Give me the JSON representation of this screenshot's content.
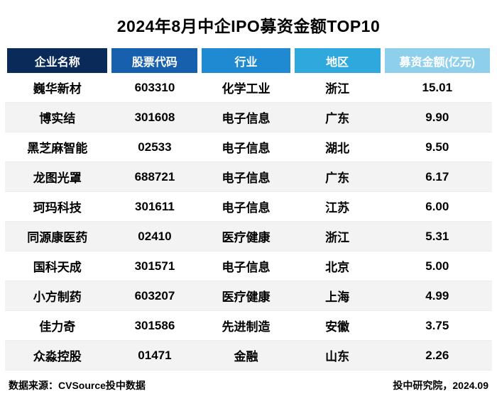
{
  "title": "2024年8月中企IPO募资金额TOP10",
  "chart_data": {
    "type": "table",
    "title": "2024年8月中企IPO募资金额TOP10",
    "columns": [
      "企业名称",
      "股票代码",
      "行业",
      "地区",
      "募资金额(亿元)"
    ],
    "header_colors": [
      "#0a2a5a",
      "#1760ad",
      "#1f8ad2",
      "#2fa9dd",
      "#8ecfeb"
    ],
    "header_text_color": "#ffffff",
    "alt_row_color": "#f3f3f3",
    "rows": [
      [
        "巍华新材",
        "603310",
        "化学工业",
        "浙江",
        "15.01"
      ],
      [
        "博实结",
        "301608",
        "电子信息",
        "广东",
        "9.90"
      ],
      [
        "黑芝麻智能",
        "02533",
        "电子信息",
        "湖北",
        "9.50"
      ],
      [
        "龙图光罩",
        "688721",
        "电子信息",
        "广东",
        "6.17"
      ],
      [
        "珂玛科技",
        "301611",
        "电子信息",
        "江苏",
        "6.00"
      ],
      [
        "同源康医药",
        "02410",
        "医疗健康",
        "浙江",
        "5.31"
      ],
      [
        "国科天成",
        "301571",
        "电子信息",
        "北京",
        "5.00"
      ],
      [
        "小方制药",
        "603207",
        "医疗健康",
        "上海",
        "4.99"
      ],
      [
        "佳力奇",
        "301586",
        "先进制造",
        "安徽",
        "3.75"
      ],
      [
        "众淼控股",
        "01471",
        "金融",
        "山东",
        "2.26"
      ]
    ]
  },
  "footer": {
    "source": "数据来源：CVSource投中数据",
    "credit": "投中研究院，2024.09"
  }
}
